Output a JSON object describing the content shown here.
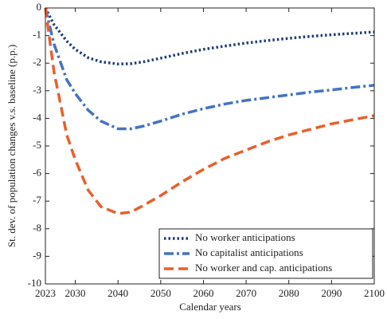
{
  "chart_data": {
    "type": "line",
    "x_label": "Calendar years",
    "y_label": "St. dev. of population changes v.s. baseline (p.p.)",
    "x": [
      2023,
      2025,
      2028,
      2030,
      2033,
      2036,
      2040,
      2043,
      2046,
      2050,
      2055,
      2060,
      2065,
      2070,
      2075,
      2080,
      2085,
      2090,
      2095,
      2100
    ],
    "series": [
      {
        "name": "No worker anticipations",
        "color": "#1f3d73",
        "line_style": "dotted",
        "values": [
          0,
          -0.6,
          -1.2,
          -1.5,
          -1.8,
          -1.95,
          -2.03,
          -2.02,
          -1.95,
          -1.82,
          -1.65,
          -1.5,
          -1.38,
          -1.27,
          -1.18,
          -1.1,
          -1.03,
          -0.97,
          -0.92,
          -0.87
        ]
      },
      {
        "name": "No capitalist anticipations",
        "color": "#4472c4",
        "line_style": "dashdot",
        "values": [
          0,
          -1.3,
          -2.6,
          -3.1,
          -3.7,
          -4.1,
          -4.38,
          -4.38,
          -4.28,
          -4.1,
          -3.85,
          -3.65,
          -3.48,
          -3.35,
          -3.25,
          -3.15,
          -3.05,
          -2.97,
          -2.88,
          -2.8
        ]
      },
      {
        "name": "No worker and cap. anticipations",
        "color": "#e8602c",
        "line_style": "dashed",
        "values": [
          0,
          -2.3,
          -4.6,
          -5.5,
          -6.6,
          -7.2,
          -7.45,
          -7.4,
          -7.15,
          -6.8,
          -6.3,
          -5.85,
          -5.45,
          -5.15,
          -4.85,
          -4.6,
          -4.4,
          -4.2,
          -4.05,
          -3.9
        ]
      }
    ],
    "xlim": [
      2023,
      2100
    ],
    "xticks": [
      2023,
      2030,
      2040,
      2050,
      2060,
      2070,
      2080,
      2090,
      2100
    ],
    "ylim": [
      -10,
      0
    ],
    "yticks": [
      0,
      -1,
      -2,
      -3,
      -4,
      -5,
      -6,
      -7,
      -8,
      -9,
      -10
    ],
    "grid": false,
    "legend": "lower right"
  }
}
